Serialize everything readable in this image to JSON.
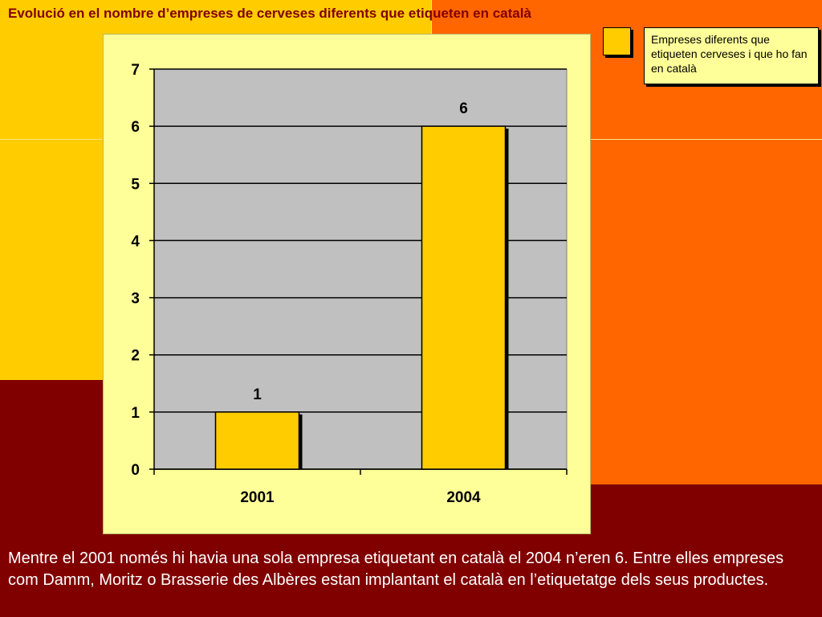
{
  "title": "Evolució en el nombre d’empreses de cerveses diferents que etiqueten en català",
  "legend": {
    "label": "Empreses diferents que etiqueten cerveses i que ho fan en català"
  },
  "caption": "Mentre el 2001 només hi havia una sola empresa etiquetant en català el 2004 n’eren 6. Entre elles empreses com Damm, Moritz o Brasserie des Albères estan implantant el català en l’etiquetatge dels seus productes.",
  "colors": {
    "bar": "#FFCC00",
    "plot_bg": "#C0C0C0",
    "panel_bg": "#FFFF99",
    "title": "#800000"
  },
  "chart_data": {
    "type": "bar",
    "categories": [
      "2001",
      "2004"
    ],
    "series": [
      {
        "name": "Empreses diferents que etiqueten cerveses i que ho fan en català",
        "values": [
          1,
          6
        ]
      }
    ],
    "data_labels": [
      "1",
      "6"
    ],
    "yticks": [
      "0",
      "1",
      "2",
      "3",
      "4",
      "5",
      "6",
      "7"
    ],
    "ylim": [
      0,
      7
    ],
    "grid": true,
    "legend_position": "top-right"
  }
}
